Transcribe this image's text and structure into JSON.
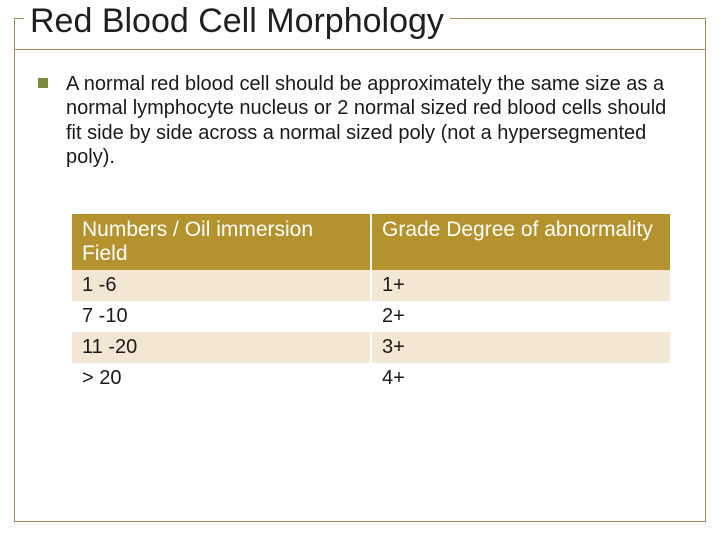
{
  "title": "Red Blood Cell Morphology",
  "body": "A normal red blood cell should be approximately the same size as a normal lymphocyte nucleus or 2 normal sized red blood cells should fit side by side across a normal sized poly (not a hypersegmented poly).",
  "table": {
    "header": {
      "col1": "Numbers / Oil immersion Field",
      "col2": "Grade Degree of abnormality"
    },
    "rows": [
      {
        "col1": "1 -6",
        "col2": "1+"
      },
      {
        "col1": "7 -10",
        "col2": "2+"
      },
      {
        "col1": "11 -20",
        "col2": "3+"
      },
      {
        "col1": "> 20",
        "col2": "4+"
      }
    ]
  },
  "colors": {
    "frame_border": "#a08a5c",
    "bullet": "#7a8a3f",
    "header_bg": "#b4922e",
    "header_text": "#ffffff",
    "row_odd_bg": "#f3e6d2",
    "row_even_bg": "#ffffff",
    "text": "#1a1a1a"
  },
  "typography": {
    "title_fontsize": 34,
    "body_fontsize": 20,
    "header_fontsize": 21,
    "cell_fontsize": 20
  }
}
